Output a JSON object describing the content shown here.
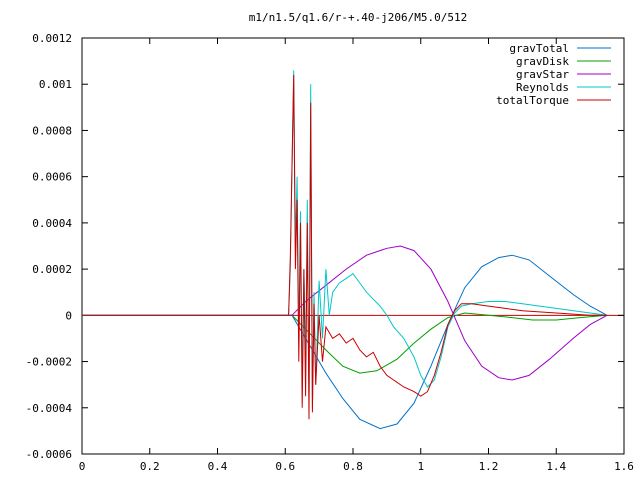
{
  "chart_data": {
    "type": "line",
    "title": "m1/n1.5/q1.6/r-+.40-j206/M5.0/512",
    "xlabel": "",
    "ylabel": "",
    "xlim": [
      0,
      1.6
    ],
    "ylim": [
      -0.0006,
      0.0012
    ],
    "grid": false,
    "legend_position": "top-right",
    "x_ticks": [
      "0",
      "0.2",
      "0.4",
      "0.6",
      "0.8",
      "1",
      "1.2",
      "1.4",
      "1.6"
    ],
    "y_ticks": [
      "0.0012",
      "0.001",
      "0.0008",
      "0.0006",
      "0.0004",
      "0.0002",
      "0",
      "-0.0002",
      "-0.0004",
      "-0.0006"
    ],
    "series": [
      {
        "name": "gravTotal",
        "color": "#0070c8",
        "points": [
          [
            0,
            0
          ],
          [
            0.62,
            0
          ],
          [
            0.64,
            -5e-05
          ],
          [
            0.68,
            -0.00015
          ],
          [
            0.72,
            -0.00025
          ],
          [
            0.77,
            -0.00036
          ],
          [
            0.82,
            -0.00045
          ],
          [
            0.88,
            -0.00049
          ],
          [
            0.93,
            -0.00047
          ],
          [
            0.98,
            -0.00038
          ],
          [
            1.03,
            -0.00022
          ],
          [
            1.08,
            -4e-05
          ],
          [
            1.13,
            0.00012
          ],
          [
            1.18,
            0.00021
          ],
          [
            1.23,
            0.00025
          ],
          [
            1.27,
            0.00026
          ],
          [
            1.32,
            0.00024
          ],
          [
            1.38,
            0.00017
          ],
          [
            1.45,
            9e-05
          ],
          [
            1.5,
            4e-05
          ],
          [
            1.55,
            0
          ]
        ]
      },
      {
        "name": "gravDisk",
        "color": "#00a000",
        "points": [
          [
            0,
            0
          ],
          [
            0.62,
            0
          ],
          [
            0.66,
            -6e-05
          ],
          [
            0.72,
            -0.00015
          ],
          [
            0.77,
            -0.00022
          ],
          [
            0.82,
            -0.00025
          ],
          [
            0.87,
            -0.00024
          ],
          [
            0.93,
            -0.00019
          ],
          [
            0.98,
            -0.00012
          ],
          [
            1.03,
            -6e-05
          ],
          [
            1.08,
            -1e-05
          ],
          [
            1.13,
            1e-05
          ],
          [
            1.2,
            0
          ],
          [
            1.27,
            -1e-05
          ],
          [
            1.33,
            -2e-05
          ],
          [
            1.4,
            -2e-05
          ],
          [
            1.47,
            -1e-05
          ],
          [
            1.55,
            0
          ]
        ]
      },
      {
        "name": "gravStar",
        "color": "#a000c8",
        "points": [
          [
            0,
            0
          ],
          [
            0.62,
            0
          ],
          [
            0.66,
            6e-05
          ],
          [
            0.72,
            0.00013
          ],
          [
            0.78,
            0.0002
          ],
          [
            0.84,
            0.00026
          ],
          [
            0.9,
            0.00029
          ],
          [
            0.94,
            0.0003
          ],
          [
            0.98,
            0.00028
          ],
          [
            1.03,
            0.0002
          ],
          [
            1.08,
            6e-05
          ],
          [
            1.13,
            -0.00011
          ],
          [
            1.18,
            -0.00022
          ],
          [
            1.23,
            -0.00027
          ],
          [
            1.27,
            -0.00028
          ],
          [
            1.32,
            -0.00026
          ],
          [
            1.38,
            -0.00019
          ],
          [
            1.45,
            -0.0001
          ],
          [
            1.5,
            -4e-05
          ],
          [
            1.55,
            0
          ]
        ]
      },
      {
        "name": "Reynolds",
        "color": "#00c8c8",
        "points": [
          [
            0,
            0
          ],
          [
            0.61,
            0
          ],
          [
            0.615,
            0.0002
          ],
          [
            0.625,
            0.00106
          ],
          [
            0.63,
            0.0003
          ],
          [
            0.635,
            0.0006
          ],
          [
            0.64,
            -0.0001
          ],
          [
            0.645,
            0.00045
          ],
          [
            0.65,
            -0.0003
          ],
          [
            0.655,
            0.0002
          ],
          [
            0.66,
            -0.0002
          ],
          [
            0.665,
            0.0005
          ],
          [
            0.67,
            -0.00035
          ],
          [
            0.675,
            0.001
          ],
          [
            0.68,
            -0.0004
          ],
          [
            0.685,
            0.0001
          ],
          [
            0.69,
            -0.0003
          ],
          [
            0.7,
            0.00015
          ],
          [
            0.71,
            -0.0001
          ],
          [
            0.72,
            0.0002
          ],
          [
            0.73,
            0
          ],
          [
            0.74,
            0.0001
          ],
          [
            0.75,
            0.00012
          ],
          [
            0.76,
            0.00014
          ],
          [
            0.78,
            0.00016
          ],
          [
            0.8,
            0.00018
          ],
          [
            0.82,
            0.00014
          ],
          [
            0.84,
            0.0001
          ],
          [
            0.86,
            7e-05
          ],
          [
            0.88,
            4e-05
          ],
          [
            0.9,
            0
          ],
          [
            0.92,
            -5e-05
          ],
          [
            0.95,
            -0.0001
          ],
          [
            0.98,
            -0.00018
          ],
          [
            1,
            -0.00026
          ],
          [
            1.02,
            -0.00031
          ],
          [
            1.04,
            -0.00028
          ],
          [
            1.06,
            -0.00018
          ],
          [
            1.08,
            -5e-05
          ],
          [
            1.1,
            1e-05
          ],
          [
            1.12,
            4e-05
          ],
          [
            1.15,
            5e-05
          ],
          [
            1.2,
            6e-05
          ],
          [
            1.25,
            6e-05
          ],
          [
            1.3,
            5e-05
          ],
          [
            1.4,
            3e-05
          ],
          [
            1.5,
            1e-05
          ],
          [
            1.55,
            0
          ]
        ]
      },
      {
        "name": "totalTorque",
        "color": "#c80000",
        "points": [
          [
            0,
            0
          ],
          [
            0.61,
            0
          ],
          [
            0.615,
            0.00025
          ],
          [
            0.625,
            0.00104
          ],
          [
            0.63,
            0.0002
          ],
          [
            0.635,
            0.0005
          ],
          [
            0.64,
            -0.0002
          ],
          [
            0.645,
            0.0004
          ],
          [
            0.65,
            -0.0004
          ],
          [
            0.655,
            0.0002
          ],
          [
            0.66,
            -0.00035
          ],
          [
            0.665,
            0.0004
          ],
          [
            0.67,
            -0.00045
          ],
          [
            0.675,
            0.00092
          ],
          [
            0.68,
            -0.00042
          ],
          [
            0.685,
            5e-05
          ],
          [
            0.69,
            -0.0003
          ],
          [
            0.7,
            0
          ],
          [
            0.71,
            -0.0002
          ],
          [
            0.72,
            -5e-05
          ],
          [
            0.74,
            -0.0001
          ],
          [
            0.76,
            -8e-05
          ],
          [
            0.78,
            -0.00012
          ],
          [
            0.8,
            -0.0001
          ],
          [
            0.82,
            -0.00015
          ],
          [
            0.84,
            -0.00018
          ],
          [
            0.86,
            -0.00016
          ],
          [
            0.88,
            -0.00022
          ],
          [
            0.9,
            -0.00026
          ],
          [
            0.92,
            -0.00028
          ],
          [
            0.95,
            -0.00031
          ],
          [
            0.98,
            -0.00033
          ],
          [
            1,
            -0.00035
          ],
          [
            1.02,
            -0.00033
          ],
          [
            1.04,
            -0.00026
          ],
          [
            1.06,
            -0.00016
          ],
          [
            1.08,
            -4e-05
          ],
          [
            1.1,
            2e-05
          ],
          [
            1.12,
            5e-05
          ],
          [
            1.15,
            5e-05
          ],
          [
            1.2,
            4e-05
          ],
          [
            1.25,
            3e-05
          ],
          [
            1.3,
            2e-05
          ],
          [
            1.4,
            1e-05
          ],
          [
            1.5,
            0
          ],
          [
            1.55,
            0
          ]
        ]
      }
    ]
  }
}
